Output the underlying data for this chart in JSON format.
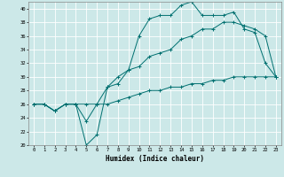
{
  "title": "",
  "xlabel": "Humidex (Indice chaleur)",
  "ylabel": "",
  "bg_color": "#cce8e8",
  "line_color": "#007070",
  "grid_color": "#ffffff",
  "xlim": [
    -0.5,
    23.5
  ],
  "ylim": [
    20,
    41
  ],
  "yticks": [
    20,
    22,
    24,
    26,
    28,
    30,
    32,
    34,
    36,
    38,
    40
  ],
  "xticks": [
    0,
    1,
    2,
    3,
    4,
    5,
    6,
    7,
    8,
    9,
    10,
    11,
    12,
    13,
    14,
    15,
    16,
    17,
    18,
    19,
    20,
    21,
    22,
    23
  ],
  "line1_x": [
    0,
    1,
    2,
    3,
    4,
    5,
    6,
    7,
    8,
    9,
    10,
    11,
    12,
    13,
    14,
    15,
    16,
    17,
    18,
    19,
    20,
    21,
    22,
    23
  ],
  "line1_y": [
    26,
    26,
    25,
    26,
    26,
    20,
    21.5,
    28.5,
    29,
    31,
    36,
    38.5,
    39,
    39,
    40.5,
    41,
    39,
    39,
    39,
    39.5,
    37,
    36.5,
    32,
    30
  ],
  "line2_x": [
    0,
    1,
    2,
    3,
    4,
    5,
    6,
    7,
    8,
    9,
    10,
    11,
    12,
    13,
    14,
    15,
    16,
    17,
    18,
    19,
    20,
    21,
    22,
    23
  ],
  "line2_y": [
    26,
    26,
    25,
    26,
    26,
    23.5,
    26,
    28.5,
    30,
    31,
    31.5,
    33,
    33.5,
    34,
    35.5,
    36,
    37,
    37,
    38,
    38,
    37.5,
    37,
    36,
    30
  ],
  "line3_x": [
    0,
    1,
    2,
    3,
    4,
    5,
    6,
    7,
    8,
    9,
    10,
    11,
    12,
    13,
    14,
    15,
    16,
    17,
    18,
    19,
    20,
    21,
    22,
    23
  ],
  "line3_y": [
    26,
    26,
    25,
    26,
    26,
    26,
    26,
    26,
    26.5,
    27,
    27.5,
    28,
    28,
    28.5,
    28.5,
    29,
    29,
    29.5,
    29.5,
    30,
    30,
    30,
    30,
    30
  ]
}
